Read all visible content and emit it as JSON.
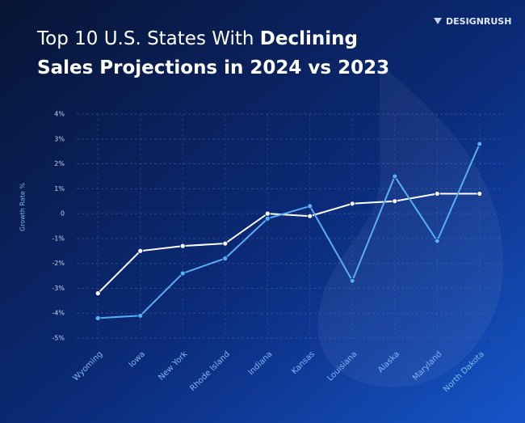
{
  "chart_data": {
    "type": "line",
    "title": [
      "Top 10 U.S. States With",
      "Declining",
      "Sales Projections in 2024 vs 2023"
    ],
    "brand": "DESIGNRUSH",
    "y_label": "Growth Rate %",
    "categories": [
      "Wyoming",
      "Iowa",
      "New York",
      "Rhode Island",
      "Indiana",
      "Kansas",
      "Louisiana",
      "Alaska",
      "Maryland",
      "North Dakota"
    ],
    "series": [
      {
        "color": "#ffffff",
        "values": [
          -3.2,
          -1.5,
          -1.3,
          -1.2,
          0.0,
          -0.1,
          0.4,
          0.5,
          0.8,
          0.8
        ]
      },
      {
        "color": "#5aaef5",
        "values": [
          -4.2,
          -4.1,
          -2.4,
          -1.8,
          -0.2,
          0.3,
          -2.7,
          1.5,
          -1.1,
          2.8
        ]
      }
    ],
    "ylim": [
      -5,
      4
    ],
    "yticks": [
      {
        "value": 4,
        "label": "4%"
      },
      {
        "value": 3,
        "label": "3%"
      },
      {
        "value": 2,
        "label": "2%"
      },
      {
        "value": 1,
        "label": "1%"
      },
      0,
      {
        "value": -1,
        "label": "-1%"
      },
      {
        "value": -2,
        "label": "-2%"
      },
      {
        "value": -3,
        "label": "-3%"
      },
      {
        "value": -4,
        "label": "-4%"
      },
      {
        "value": -5,
        "label": "-5%"
      }
    ],
    "grid": true
  }
}
